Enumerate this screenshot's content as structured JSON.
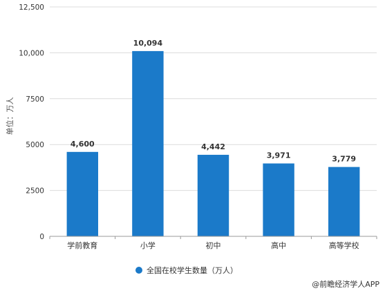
{
  "chart_data": {
    "type": "bar",
    "categories": [
      "学前教育",
      "小学",
      "初中",
      "高中",
      "高等学校"
    ],
    "series": [
      {
        "name": "全国在校学生数量（万人）",
        "values": [
          4600,
          10094,
          4442,
          3971,
          3779
        ],
        "data_labels": [
          "4,600",
          "10,094",
          "4,442",
          "3,971",
          "3,779"
        ]
      }
    ],
    "ylabel": "单位：万人",
    "ylim": [
      0,
      12500
    ],
    "y_ticks": [
      0,
      2500,
      5000,
      7500,
      10000,
      12500
    ],
    "y_tick_labels": [
      "0",
      "2500",
      "5000",
      "7500",
      "10,000",
      "12,500"
    ],
    "grid": true,
    "legend_position": "bottom"
  },
  "colors": {
    "bar": "#1b7ac9",
    "grid": "#dcdcdc",
    "axis": "#999999"
  },
  "credit": "@前瞻经济学人APP"
}
